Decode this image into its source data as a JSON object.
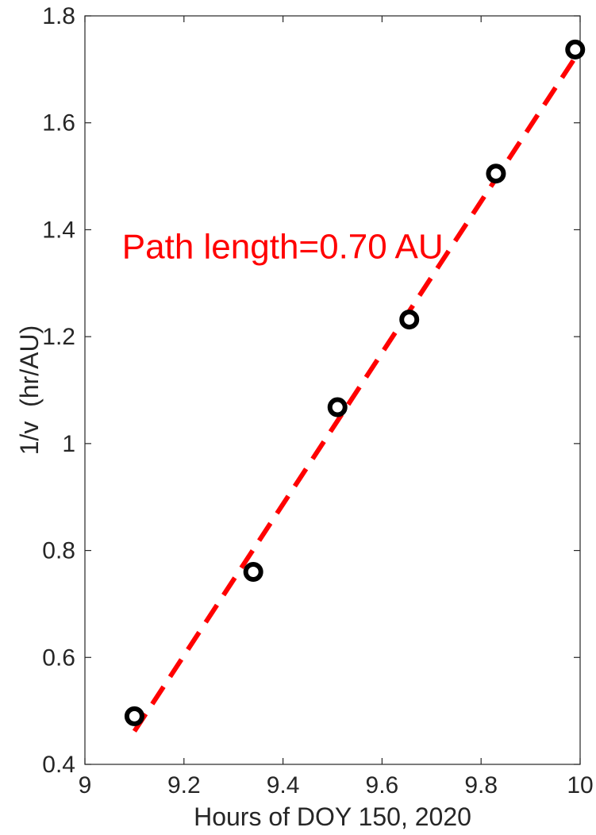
{
  "chart_data": {
    "type": "scatter",
    "xlabel": "Hours of DOY 150, 2020",
    "ylabel": "1/v  (hr/AU)",
    "xlim": [
      9,
      10
    ],
    "ylim": [
      0.4,
      1.8
    ],
    "xticks": [
      9,
      9.2,
      9.4,
      9.6,
      9.8,
      10
    ],
    "xtick_labels": [
      "9",
      "9.2",
      "9.4",
      "9.6",
      "9.8",
      "10"
    ],
    "yticks": [
      0.4,
      0.6,
      0.8,
      1.0,
      1.2,
      1.4,
      1.6,
      1.8
    ],
    "ytick_labels": [
      "0.4",
      "0.6",
      "0.8",
      "1",
      "1.2",
      "1.4",
      "1.6",
      "1.8"
    ],
    "grid": false,
    "series": [
      {
        "kind": "markers",
        "marker": "open-circle",
        "color": "#000000",
        "x": [
          9.1,
          9.34,
          9.51,
          9.655,
          9.83,
          9.99
        ],
        "y": [
          0.49,
          0.76,
          1.068,
          1.232,
          1.505,
          1.737
        ]
      },
      {
        "kind": "fit-line",
        "style": "dashed",
        "color": "#ff0000",
        "x": [
          9.1,
          9.99
        ],
        "y": [
          0.462,
          1.722
        ]
      }
    ],
    "annotations": [
      {
        "text": "Path length=0.70 AU",
        "x": 9.075,
        "y": 1.37,
        "color": "#ff0000"
      }
    ]
  }
}
